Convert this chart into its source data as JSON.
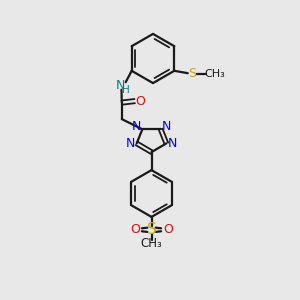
{
  "background_color": "#e8e8e8",
  "bond_color": "#1a1a1a",
  "N_color": "#0000ff",
  "O_color": "#ff0000",
  "S_color": "#ccaa00",
  "NH_color": "#008080",
  "figsize": [
    3.0,
    3.0
  ],
  "dpi": 100,
  "xlim": [
    0,
    10
  ],
  "ylim": [
    0,
    10
  ]
}
